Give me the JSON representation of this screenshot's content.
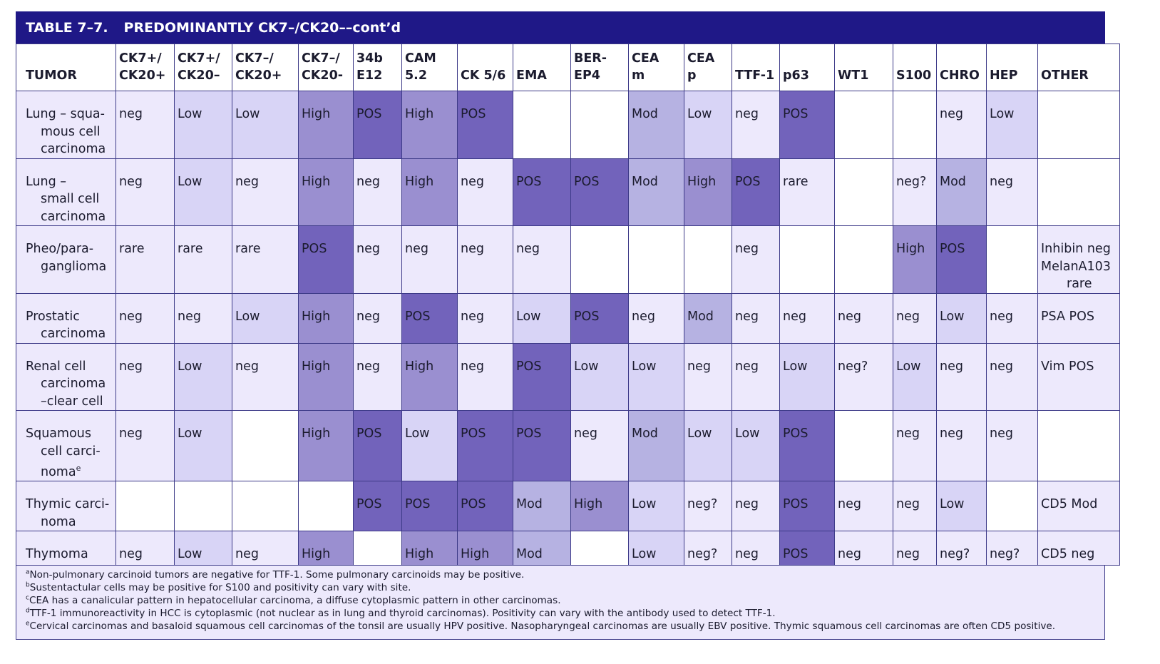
{
  "table": {
    "number": "TABLE 7–7.",
    "title": "PREDOMINANTLY CK7–/CK20––cont’d",
    "headers": [
      [
        "TUMOR"
      ],
      [
        "CK7+/",
        "CK20+"
      ],
      [
        "CK7+/",
        "CK20–"
      ],
      [
        "CK7–/",
        "CK20+"
      ],
      [
        "CK7–/",
        "CK20-"
      ],
      [
        "34b",
        "E12"
      ],
      [
        "CAM",
        "5.2"
      ],
      [
        "CK 5/6"
      ],
      [
        "EMA"
      ],
      [
        "BER-",
        "EP4"
      ],
      [
        "CEA",
        "m"
      ],
      [
        "CEA",
        "p"
      ],
      [
        "TTF-1"
      ],
      [
        "p63"
      ],
      [
        "WT1"
      ],
      [
        "S100"
      ],
      [
        "CHRO"
      ],
      [
        "HEP"
      ],
      [
        "OTHER"
      ]
    ],
    "rows": [
      {
        "tumor": [
          "Lung – squa-",
          "mous cell",
          "carcinoma"
        ],
        "cells": [
          "neg",
          "Low",
          "Low",
          "High",
          "POS",
          "High",
          "POS",
          "",
          "",
          "Mod",
          "Low",
          "neg",
          "POS",
          "",
          "",
          "neg",
          "Low"
        ],
        "other": []
      },
      {
        "tumor": [
          "Lung –",
          "small cell",
          "carcinoma"
        ],
        "cells": [
          "neg",
          "Low",
          "neg",
          "High",
          "neg",
          "High",
          "neg",
          "POS",
          "POS",
          "Mod",
          "High",
          "POS",
          "rare",
          "",
          "neg?",
          "Mod",
          "neg"
        ],
        "other": []
      },
      {
        "tumor": [
          "Pheo/para-",
          "ganglioma"
        ],
        "cells": [
          "rare",
          "rare",
          "rare",
          "POS",
          "neg",
          "neg",
          "neg",
          "neg",
          "",
          "",
          "",
          "neg",
          "",
          "",
          "High",
          "POS",
          ""
        ],
        "other": [
          "Inhibin neg",
          "MelanA103",
          "rare"
        ]
      },
      {
        "tumor": [
          "Prostatic",
          "carcinoma"
        ],
        "cells": [
          "neg",
          "neg",
          "Low",
          "High",
          "neg",
          "POS",
          "neg",
          "Low",
          "POS",
          "neg",
          "Mod",
          "neg",
          "neg",
          "neg",
          "neg",
          "Low",
          "neg"
        ],
        "other": [
          "PSA POS"
        ]
      },
      {
        "tumor": [
          "Renal cell",
          "carcinoma",
          "–clear cell"
        ],
        "cells": [
          "neg",
          "Low",
          "neg",
          "High",
          "neg",
          "High",
          "neg",
          "POS",
          "Low",
          "Low",
          "neg",
          "neg",
          "Low",
          "neg?",
          "Low",
          "neg",
          "neg"
        ],
        "other": [
          "Vim POS"
        ]
      },
      {
        "tumor": [
          "Squamous",
          "cell carci-",
          "noma"
        ],
        "tumor_sup": "e",
        "cells": [
          "neg",
          "Low",
          "",
          "High",
          "POS",
          "Low",
          "POS",
          "POS",
          "neg",
          "Mod",
          "Low",
          "Low",
          "POS",
          "",
          "neg",
          "neg",
          "neg"
        ],
        "other": []
      },
      {
        "tumor": [
          "Thymic carci-",
          "noma"
        ],
        "cells": [
          "",
          "",
          "",
          "",
          "POS",
          "POS",
          "POS",
          "Mod",
          "High",
          "Low",
          "neg?",
          "neg",
          "POS",
          "neg",
          "neg",
          "Low",
          ""
        ],
        "other": [
          "CD5 Mod"
        ]
      },
      {
        "tumor": [
          "Thymoma"
        ],
        "cells": [
          "neg",
          "Low",
          "neg",
          "High",
          "",
          "High",
          "High",
          "Mod",
          "",
          "Low",
          "neg?",
          "neg",
          "POS",
          "neg",
          "neg",
          "neg?",
          "neg?"
        ],
        "other": [
          "CD5 neg"
        ]
      }
    ],
    "footnotes": [
      {
        "mark": "a",
        "text": "Non-pulmonary carcinoid tumors are negative for TTF-1. Some pulmonary carcinoids may be positive."
      },
      {
        "mark": "b",
        "text": "Sustentactular cells may be positive for S100 and positivity can vary with site."
      },
      {
        "mark": "c",
        "text": "CEA has a canalicular pattern in hepatocellular carcinoma, a diffuse cytoplasmic pattern in other carcinomas."
      },
      {
        "mark": "d",
        "text": "TTF-1 immunoreactivity in HCC is cytoplasmic (not nuclear as in lung and thyroid carcinomas). Positivity can vary with the antibody used to detect TTF-1."
      },
      {
        "mark": "e",
        "text": "Cervical carcinomas and basaloid squamous cell carcinomas of the tonsil are usually HPV positive. Nasopharyngeal carcinomas are usually EBV positive. Thymic squamous cell carcinomas are often CD5 positive."
      }
    ]
  },
  "colors": {
    "header_band": "#1f1887",
    "empty": "#ffffff",
    "neg_rare": "#ede9fc",
    "low": "#d8d4f6",
    "mod": "#b6b2e2",
    "high": "#9a8fd0",
    "pos": "#7263bb"
  }
}
